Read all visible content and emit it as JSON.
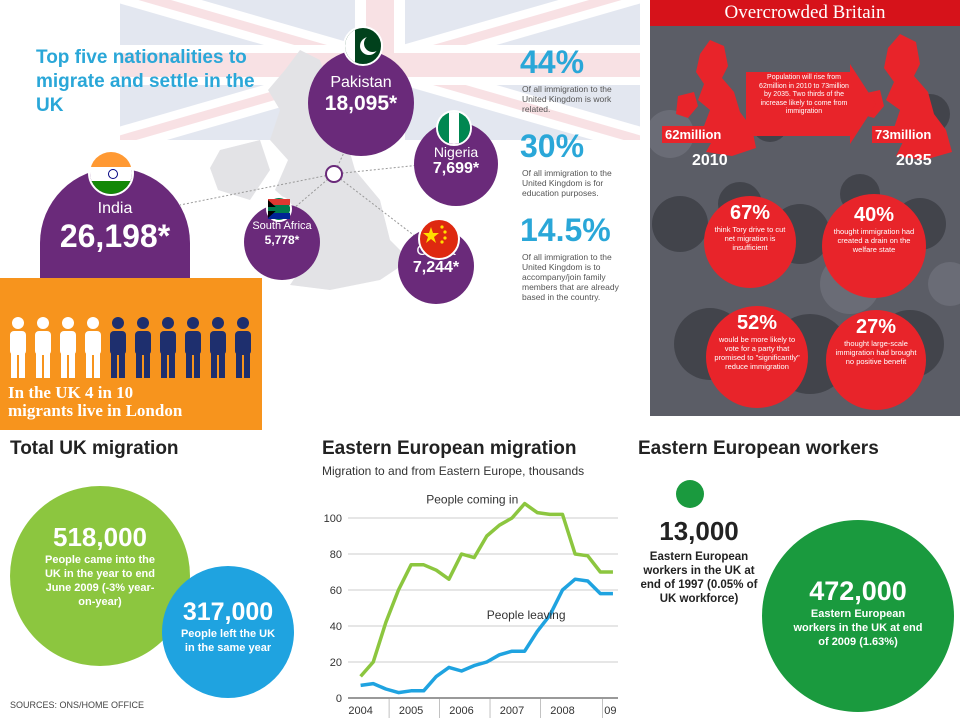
{
  "nationalities": {
    "title": "Top five nationalities to migrate and settle in the UK",
    "items": [
      {
        "name": "India",
        "value": "26,198*"
      },
      {
        "name": "Pakistan",
        "value": "18,095*"
      },
      {
        "name": "Nigeria",
        "value": "7,699*"
      },
      {
        "name": "South Africa",
        "value": "5,778*"
      },
      {
        "name": "China",
        "value": "7,244*"
      }
    ],
    "stats": [
      {
        "pct": "44%",
        "text": "Of all immigration to the United Kingdom is work related."
      },
      {
        "pct": "30%",
        "text": "Of all immigration to the United Kingdom is for education purposes."
      },
      {
        "pct": "14.5%",
        "text": "Of all immigration to the United Kingdom is to accompany/join family members that are already based in the country."
      }
    ]
  },
  "overcrowded": {
    "title": "Overcrowded Britain",
    "left_pop": "62million",
    "left_year": "2010",
    "right_pop": "73million",
    "right_year": "2035",
    "note": "Population will rise from 62million in 2010 to 73million by 2035. Two thirds of the increase likely to come from immigration",
    "circles": [
      {
        "pct": "67%",
        "text": "think Tory drive to cut net migration is insufficient"
      },
      {
        "pct": "40%",
        "text": "thought immigration had created a drain on the welfare state"
      },
      {
        "pct": "52%",
        "text": "would be more likely to vote for a party that promised to \"significantly\" reduce immigration"
      },
      {
        "pct": "27%",
        "text": "thought large-scale immigration had brought no positive benefit"
      }
    ]
  },
  "london": {
    "text_line1": "In the UK 4 in 10",
    "text_line2": "migrants live in London",
    "figures_total": 10,
    "figures_highlighted": 4
  },
  "total_migration": {
    "title": "Total UK migration",
    "came_value": "518,000",
    "came_text": "People came into the UK in the year to end June 2009 (-3% year-on-year)",
    "left_value": "317,000",
    "left_text": "People left the UK in the same year",
    "sources": "SOURCES: ONS/HOME OFFICE"
  },
  "eastern_workers": {
    "title": "Eastern European workers",
    "value_1997": "13,000",
    "text_1997": "Eastern European workers in the UK at end of 1997 (0.05% of UK workforce)",
    "value_2009": "472,000",
    "text_2009": "Eastern European workers in the UK at end of 2009 (1.63%)"
  },
  "colors": {
    "purple": "#6a2a7a",
    "blue": "#2aa7d8",
    "red": "#e8242a",
    "orange": "#f7941d",
    "green_light": "#8cc63f",
    "green_dark": "#1a9a3e",
    "cyan": "#1fa3e0"
  },
  "chart_data": {
    "type": "line",
    "title": "Eastern European migration",
    "subtitle": "Migration to and from Eastern Europe, thousands",
    "xlabel": "",
    "ylabel": "",
    "ylim": [
      0,
      110
    ],
    "yticks": [
      0,
      20,
      40,
      60,
      80,
      100
    ],
    "xticks": [
      "2004",
      "2005",
      "2006",
      "2007",
      "2008",
      "09"
    ],
    "x": [
      2004.0,
      2004.25,
      2004.5,
      2004.75,
      2005.0,
      2005.25,
      2005.5,
      2005.75,
      2006.0,
      2006.25,
      2006.5,
      2006.75,
      2007.0,
      2007.25,
      2007.5,
      2007.75,
      2008.0,
      2008.25,
      2008.5,
      2008.75,
      2009.0
    ],
    "series": [
      {
        "name": "People coming in",
        "values": [
          12,
          20,
          42,
          60,
          74,
          74,
          71,
          66,
          80,
          78,
          90,
          96,
          100,
          108,
          103,
          102,
          102,
          80,
          79,
          70,
          70
        ],
        "color": "#8cc63f"
      },
      {
        "name": "People leaving",
        "values": [
          7,
          8,
          5,
          3,
          4,
          4,
          12,
          17,
          15,
          18,
          20,
          24,
          26,
          26,
          37,
          46,
          60,
          66,
          65,
          58,
          58
        ],
        "color": "#1fa3e0"
      }
    ]
  }
}
